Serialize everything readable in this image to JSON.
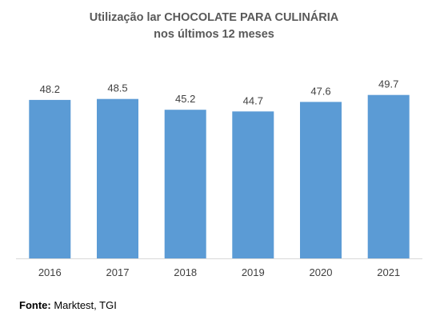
{
  "chart_data": {
    "type": "bar",
    "title_line1": "Utilização lar CHOCOLATE PARA CULINÁRIA",
    "title_line2": "nos últimos 12 meses",
    "categories": [
      "2016",
      "2017",
      "2018",
      "2019",
      "2020",
      "2021"
    ],
    "values": [
      48.2,
      48.5,
      45.2,
      44.7,
      47.6,
      49.7
    ],
    "data_labels": [
      "48.2",
      "48.5",
      "45.2",
      "44.7",
      "47.6",
      "49.7"
    ],
    "ylim": [
      0,
      50
    ],
    "grid": false,
    "legend": "none",
    "bar_color": "#5b9bd5",
    "axis_color": "#d9d9d9",
    "label_color": "#404040"
  },
  "source": {
    "label": "Fonte:",
    "text": " Marktest, TGI"
  }
}
